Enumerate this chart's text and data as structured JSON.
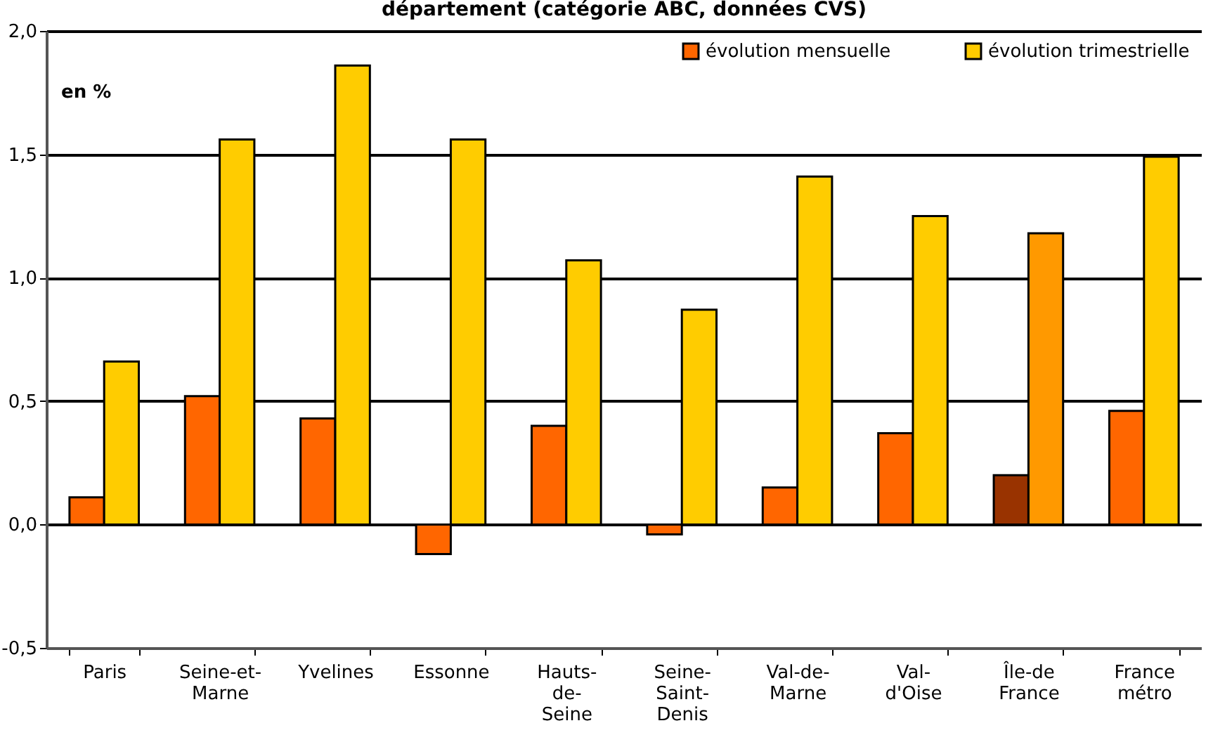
{
  "chart_data": {
    "type": "bar",
    "title": "département (catégorie ABC, données CVS)",
    "ylabel": "en %",
    "categories": [
      "Paris",
      "Seine-et-\nMarne",
      "Yvelines",
      "Essonne",
      "Hauts-\nde-\nSeine",
      "Seine-\nSaint-\nDenis",
      "Val-de-\nMarne",
      "Val-\nd'Oise",
      "Île-de\nFrance",
      "France\nmétro"
    ],
    "series": [
      {
        "name": "évolution mensuelle",
        "color": "#ff6600",
        "colors": [
          "#ff6600",
          "#ff6600",
          "#ff6600",
          "#ff6600",
          "#ff6600",
          "#ff6600",
          "#ff6600",
          "#ff6600",
          "#993300",
          "#ff6600"
        ],
        "values": [
          0.11,
          0.52,
          0.43,
          -0.12,
          0.4,
          -0.04,
          0.15,
          0.37,
          0.2,
          0.46
        ]
      },
      {
        "name": "évolution trimestrielle",
        "color": "#ffcc00",
        "colors": [
          "#ffcc00",
          "#ffcc00",
          "#ffcc00",
          "#ffcc00",
          "#ffcc00",
          "#ffcc00",
          "#ffcc00",
          "#ffcc00",
          "#ff9900",
          "#ffcc00"
        ],
        "values": [
          0.66,
          1.56,
          1.86,
          1.56,
          1.07,
          0.87,
          1.41,
          1.25,
          1.18,
          1.49
        ]
      }
    ],
    "ylim": [
      -0.5,
      2.0
    ],
    "yticks": [
      {
        "value": -0.5,
        "label": "-0,5"
      },
      {
        "value": 0,
        "label": "0,0"
      },
      {
        "value": 0.5,
        "label": "0,5"
      },
      {
        "value": 1,
        "label": "1,0"
      },
      {
        "value": 1.5,
        "label": "1,5"
      },
      {
        "value": 2,
        "label": "2,0"
      }
    ],
    "grid": "y",
    "legend": "top right"
  }
}
